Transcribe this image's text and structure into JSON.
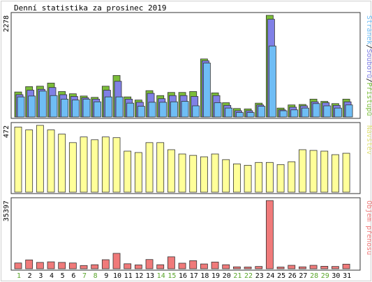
{
  "chart_data": {
    "title": "Denní statistika za prosinec 2019",
    "days": [
      "1",
      "2",
      "3",
      "4",
      "5",
      "6",
      "7",
      "8",
      "9",
      "10",
      "11",
      "12",
      "13",
      "14",
      "15",
      "16",
      "17",
      "18",
      "19",
      "20",
      "21",
      "22",
      "23",
      "24",
      "25",
      "26",
      "27",
      "28",
      "29",
      "30",
      "31"
    ],
    "weekend_days": [
      "1",
      "7",
      "8",
      "14",
      "15",
      "21",
      "22",
      "28",
      "29"
    ],
    "colors": {
      "frame": "#cfcfcf",
      "axis": "#333333",
      "text": "#000000",
      "weekday": "#000000",
      "weekend": "#5aa52a",
      "hits": "#7bbd3a",
      "files": "#8080e6",
      "pages": "#6fbdf5",
      "visits": "#ffff99",
      "kbytes": "#f07a7a",
      "legend_hits": "#7bbd3a",
      "legend_files": "#8080e6",
      "legend_pages": "#6fbdf5",
      "legend_visits": "#e0e07a",
      "legend_kbytes": "#f07a7a"
    },
    "panels": [
      {
        "type": "bar",
        "ymax_label": "2278",
        "ymax": 2278,
        "legend_parts": [
          {
            "text": "Stránek",
            "color_key": "legend_pages"
          },
          {
            "text": "/",
            "color_key": "text"
          },
          {
            "text": "Souborů",
            "color_key": "legend_files"
          },
          {
            "text": "/",
            "color_key": "text"
          },
          {
            "text": "Přístupů",
            "color_key": "legend_hits"
          }
        ],
        "series": [
          {
            "name": "Přístupů",
            "color_key": "hits",
            "values": [
              560,
              680,
              690,
              760,
              570,
              520,
              470,
              440,
              690,
              930,
              450,
              380,
              590,
              480,
              550,
              550,
              570,
              1300,
              540,
              320,
              190,
              180,
              310,
              2278,
              200,
              270,
              280,
              400,
              350,
              300,
              400
            ]
          },
          {
            "name": "Souborů",
            "color_key": "files",
            "values": [
              500,
              600,
              620,
              660,
              500,
              460,
              430,
              400,
              600,
              800,
              400,
              330,
              530,
              410,
              480,
              480,
              460,
              1260,
              480,
              260,
              140,
              140,
              270,
              2190,
              160,
              220,
              250,
              340,
              320,
              260,
              340
            ]
          },
          {
            "name": "Stránek",
            "color_key": "pages",
            "values": [
              450,
              470,
              580,
              480,
              400,
              380,
              400,
              340,
              450,
              450,
              310,
              240,
              330,
              330,
              340,
              350,
              250,
              1210,
              320,
              200,
              100,
              100,
              240,
              1590,
              140,
              160,
              200,
              300,
              250,
              200,
              270
            ]
          }
        ]
      },
      {
        "type": "bar",
        "ymax_label": "472",
        "ymax": 472,
        "legend_parts": [
          {
            "text": "Návštěv",
            "color_key": "legend_visits"
          }
        ],
        "series": [
          {
            "name": "Návštěv",
            "color_key": "visits",
            "values": [
              460,
              440,
              472,
              440,
              410,
              350,
              390,
              370,
              390,
              385,
              290,
              280,
              350,
              350,
              300,
              270,
              260,
              250,
              270,
              230,
              200,
              190,
              210,
              210,
              195,
              215,
              300,
              295,
              290,
              265,
              275
            ]
          }
        ]
      },
      {
        "type": "bar",
        "ymax_label": "35397",
        "ymax": 35397,
        "legend_parts": [
          {
            "text": "Objem přenosu",
            "color_key": "legend_kbytes"
          }
        ],
        "series": [
          {
            "name": "Objem přenosu",
            "color_key": "kbytes",
            "values": [
              3000,
              4600,
              3300,
              3600,
              3300,
              3000,
              1700,
              2100,
              4700,
              8000,
              2600,
              2000,
              4800,
              2100,
              6200,
              2900,
              4200,
              2500,
              3500,
              2100,
              1000,
              900,
              1200,
              35397,
              900,
              1800,
              1000,
              1800,
              1300,
              1200,
              2400
            ]
          }
        ]
      }
    ]
  }
}
